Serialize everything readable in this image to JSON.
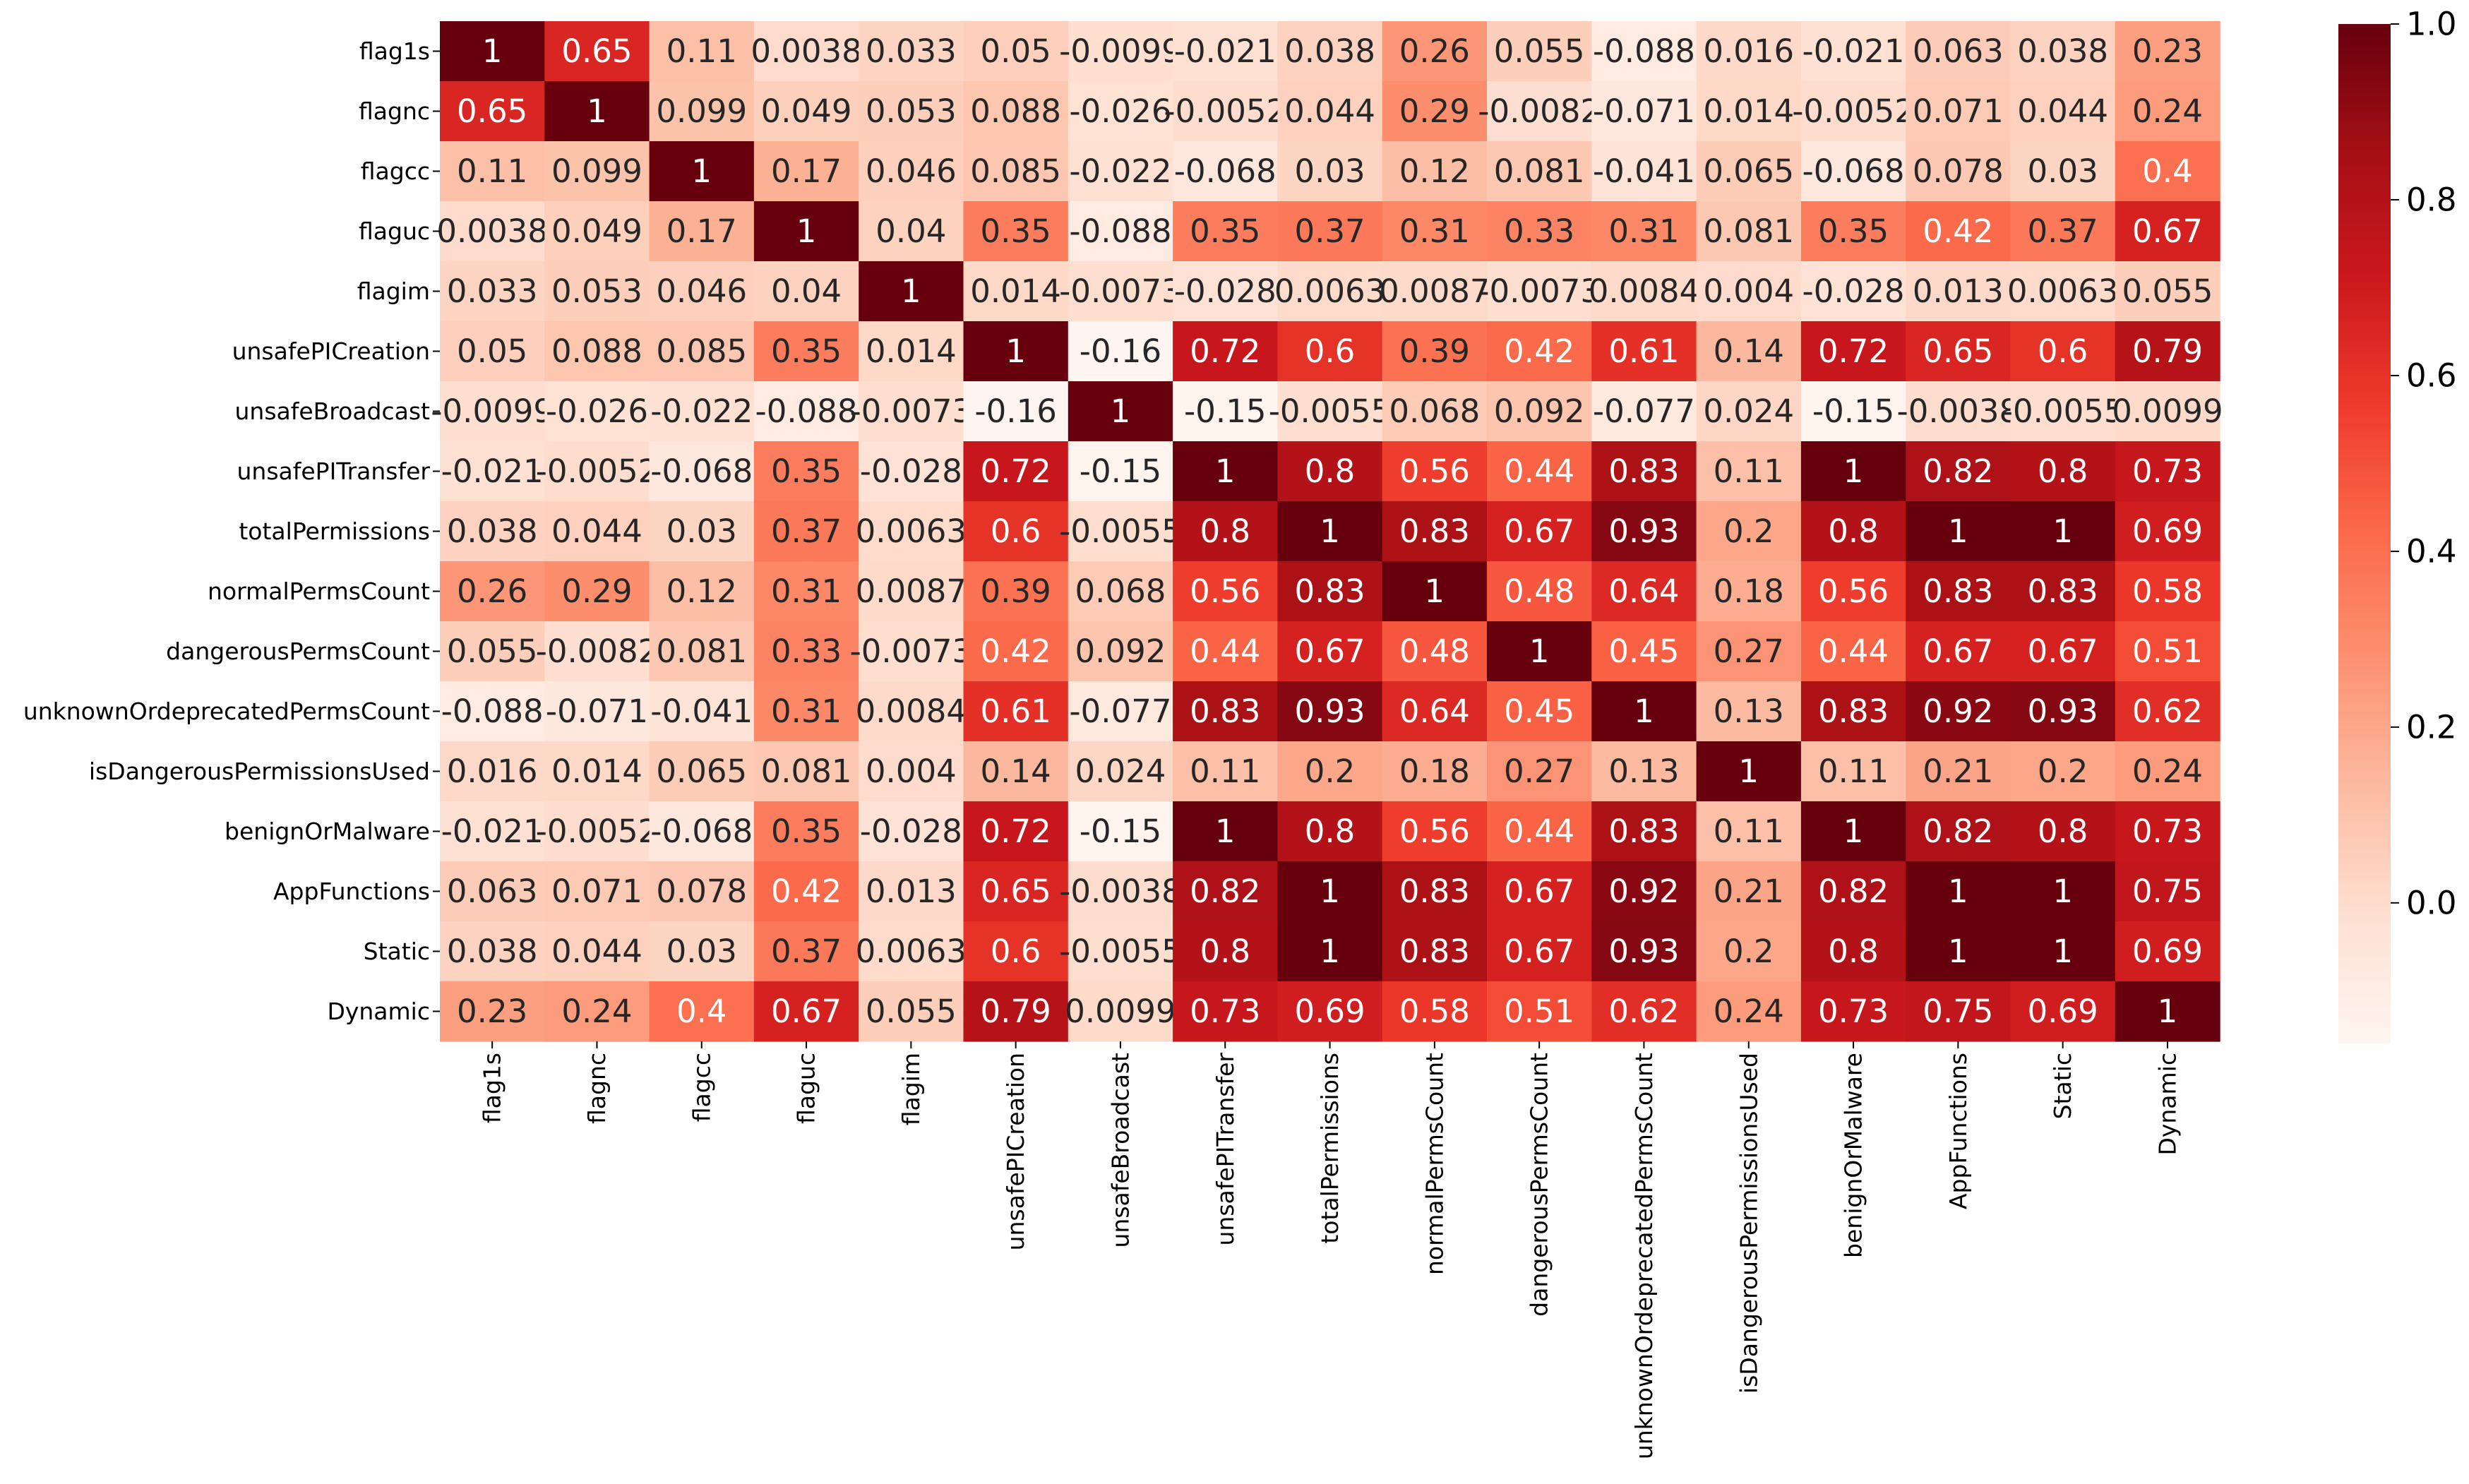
{
  "chart_data": {
    "type": "heatmap",
    "title": "",
    "xlabel": "",
    "ylabel": "",
    "colormap": "Reds",
    "colorbar": {
      "range": [
        -0.16,
        1.0
      ],
      "ticks": [
        0.0,
        0.2,
        0.4,
        0.6,
        0.8,
        1.0
      ],
      "tick_labels": [
        "0.0",
        "0.2",
        "0.4",
        "0.6",
        "0.8",
        "1.0"
      ]
    },
    "labels": [
      "flag1s",
      "flagnc",
      "flagcc",
      "flaguc",
      "flagim",
      "unsafePICreation",
      "unsafeBroadcast",
      "unsafePITransfer",
      "totalPermissions",
      "normalPermsCount",
      "dangerousPermsCount",
      "unknownOrdeprecatedPermsCount",
      "isDangerousPermissionsUsed",
      "benignOrMalware",
      "AppFunctions",
      "Static",
      "Dynamic"
    ],
    "values": [
      [
        1,
        0.65,
        0.11,
        0.0038,
        0.033,
        0.05,
        -0.0099,
        -0.021,
        0.038,
        0.26,
        0.055,
        -0.088,
        0.016,
        -0.021,
        0.063,
        0.038,
        0.23
      ],
      [
        0.65,
        1,
        0.099,
        0.049,
        0.053,
        0.088,
        -0.026,
        -0.0052,
        0.044,
        0.29,
        -0.0082,
        -0.071,
        0.014,
        -0.0052,
        0.071,
        0.044,
        0.24
      ],
      [
        0.11,
        0.099,
        1,
        0.17,
        0.046,
        0.085,
        -0.022,
        -0.068,
        0.03,
        0.12,
        0.081,
        -0.041,
        0.065,
        -0.068,
        0.078,
        0.03,
        0.4
      ],
      [
        0.0038,
        0.049,
        0.17,
        1,
        0.04,
        0.35,
        -0.088,
        0.35,
        0.37,
        0.31,
        0.33,
        0.31,
        0.081,
        0.35,
        0.42,
        0.37,
        0.67
      ],
      [
        0.033,
        0.053,
        0.046,
        0.04,
        1,
        0.014,
        -0.0073,
        -0.028,
        0.0063,
        0.0087,
        -0.0073,
        0.0084,
        0.004,
        -0.028,
        0.013,
        0.0063,
        0.055
      ],
      [
        0.05,
        0.088,
        0.085,
        0.35,
        0.014,
        1,
        -0.16,
        0.72,
        0.6,
        0.39,
        0.42,
        0.61,
        0.14,
        0.72,
        0.65,
        0.6,
        0.79
      ],
      [
        -0.0099,
        -0.026,
        -0.022,
        -0.088,
        -0.0073,
        -0.16,
        1,
        -0.15,
        -0.0055,
        0.068,
        0.092,
        -0.077,
        0.024,
        -0.15,
        -0.0038,
        -0.0055,
        0.0099
      ],
      [
        -0.021,
        -0.0052,
        -0.068,
        0.35,
        -0.028,
        0.72,
        -0.15,
        1,
        0.8,
        0.56,
        0.44,
        0.83,
        0.11,
        1,
        0.82,
        0.8,
        0.73
      ],
      [
        0.038,
        0.044,
        0.03,
        0.37,
        0.0063,
        0.6,
        -0.0055,
        0.8,
        1,
        0.83,
        0.67,
        0.93,
        0.2,
        0.8,
        1,
        1,
        0.69
      ],
      [
        0.26,
        0.29,
        0.12,
        0.31,
        0.0087,
        0.39,
        0.068,
        0.56,
        0.83,
        1,
        0.48,
        0.64,
        0.18,
        0.56,
        0.83,
        0.83,
        0.58
      ],
      [
        0.055,
        -0.0082,
        0.081,
        0.33,
        -0.0073,
        0.42,
        0.092,
        0.44,
        0.67,
        0.48,
        1,
        0.45,
        0.27,
        0.44,
        0.67,
        0.67,
        0.51
      ],
      [
        -0.088,
        -0.071,
        -0.041,
        0.31,
        0.0084,
        0.61,
        -0.077,
        0.83,
        0.93,
        0.64,
        0.45,
        1,
        0.13,
        0.83,
        0.92,
        0.93,
        0.62
      ],
      [
        0.016,
        0.014,
        0.065,
        0.081,
        0.004,
        0.14,
        0.024,
        0.11,
        0.2,
        0.18,
        0.27,
        0.13,
        1,
        0.11,
        0.21,
        0.2,
        0.24
      ],
      [
        -0.021,
        -0.0052,
        -0.068,
        0.35,
        -0.028,
        0.72,
        -0.15,
        1,
        0.8,
        0.56,
        0.44,
        0.83,
        0.11,
        1,
        0.82,
        0.8,
        0.73
      ],
      [
        0.063,
        0.071,
        0.078,
        0.42,
        0.013,
        0.65,
        -0.0038,
        0.82,
        1,
        0.83,
        0.67,
        0.92,
        0.21,
        0.82,
        1,
        1,
        0.75
      ],
      [
        0.038,
        0.044,
        0.03,
        0.37,
        0.0063,
        0.6,
        -0.0055,
        0.8,
        1,
        0.83,
        0.67,
        0.93,
        0.2,
        0.8,
        1,
        1,
        0.69
      ],
      [
        0.23,
        0.24,
        0.4,
        0.67,
        0.055,
        0.79,
        0.0099,
        0.73,
        0.69,
        0.58,
        0.51,
        0.62,
        0.24,
        0.73,
        0.75,
        0.69,
        1
      ]
    ]
  }
}
